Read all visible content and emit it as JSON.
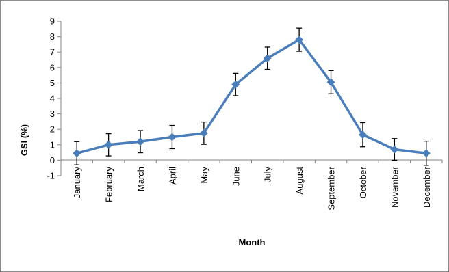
{
  "chart_data": {
    "type": "line",
    "xlabel": "Month",
    "ylabel": "GSI (%)",
    "ylim": [
      -1,
      9
    ],
    "yticks": [
      -1,
      0,
      1,
      2,
      3,
      4,
      5,
      6,
      7,
      8,
      9
    ],
    "categories": [
      "January",
      "February",
      "March",
      "April",
      "May",
      "June",
      "July",
      "August",
      "September",
      "October",
      "November",
      "December"
    ],
    "series": [
      {
        "values": [
          0.45,
          1.0,
          1.2,
          1.5,
          1.75,
          4.9,
          6.6,
          7.8,
          5.05,
          1.65,
          0.7,
          0.45
        ],
        "error": [
          0.75,
          0.72,
          0.72,
          0.75,
          0.72,
          0.72,
          0.72,
          0.75,
          0.75,
          0.78,
          0.7,
          0.78
        ],
        "color": "#4a7ebb"
      }
    ],
    "legend": "none",
    "grid": false
  }
}
